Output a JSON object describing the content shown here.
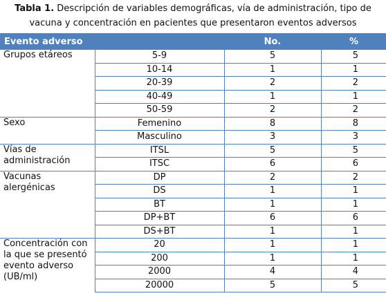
{
  "caption": {
    "label": "Tabla 1.",
    "line1": " Descripción de variables demográficas, vía de administración, tipo de",
    "line2": "vacuna y concentración en pacientes que presentaron eventos adversos"
  },
  "header": {
    "col1": "Evento adverso",
    "col3": "No.",
    "col4": "%",
    "color": "#4f81bd"
  },
  "groups": [
    {
      "label": "Grupos etáreos",
      "rows": [
        {
          "cat": "5-9",
          "no": "5",
          "pct": "5"
        },
        {
          "cat": "10-14",
          "no": "1",
          "pct": "1"
        },
        {
          "cat": "20-39",
          "no": "2",
          "pct": "2"
        },
        {
          "cat": "40-49",
          "no": "1",
          "pct": "1"
        },
        {
          "cat": "50-59",
          "no": "2",
          "pct": "2"
        }
      ]
    },
    {
      "label": "Sexo",
      "rows": [
        {
          "cat": "Femenino",
          "no": "8",
          "pct": "8"
        },
        {
          "cat": "Masculino",
          "no": "3",
          "pct": "3"
        }
      ]
    },
    {
      "label": "Vías de administración",
      "rows": [
        {
          "cat": "ITSL",
          "no": "5",
          "pct": "5"
        },
        {
          "cat": "ITSC",
          "no": "6",
          "pct": "6"
        }
      ]
    },
    {
      "label": "Vacunas alergénicas",
      "rows": [
        {
          "cat": "DP",
          "no": "2",
          "pct": "2"
        },
        {
          "cat": "DS",
          "no": "1",
          "pct": "1"
        },
        {
          "cat": "BT",
          "no": "1",
          "pct": "1"
        },
        {
          "cat": "DP+BT",
          "no": "6",
          "pct": "6"
        },
        {
          "cat": "DS+BT",
          "no": "1",
          "pct": "1"
        }
      ]
    },
    {
      "label": "Concentración con la que se presentó evento adverso (UB/ml)",
      "rows": [
        {
          "cat": "20",
          "no": "1",
          "pct": "1"
        },
        {
          "cat": "200",
          "no": "1",
          "pct": "1"
        },
        {
          "cat": "2000",
          "no": "4",
          "pct": "4"
        },
        {
          "cat": "20000",
          "no": "5",
          "pct": "5"
        }
      ]
    }
  ]
}
